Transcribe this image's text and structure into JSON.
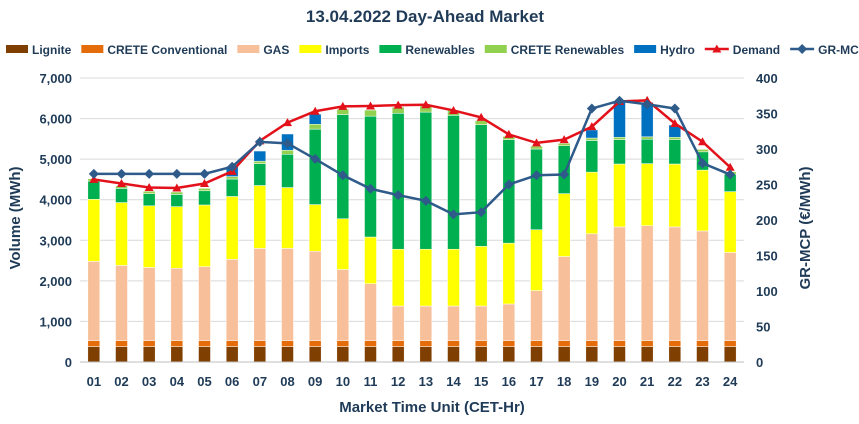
{
  "chart_data": {
    "type": "stacked-bar-with-lines",
    "title": "13.04.2022  Day-Ahead Market",
    "xlabel": "Market Time Unit (CET-Hr)",
    "ylabel": "Volume (MWh)",
    "y2label": "GR-MCP (€/MWh)",
    "ylim": [
      0,
      7000
    ],
    "y2lim": [
      0,
      400
    ],
    "yticks": [
      "0",
      "1,000",
      "2,000",
      "3,000",
      "4,000",
      "5,000",
      "6,000",
      "7,000"
    ],
    "y2ticks": [
      "0",
      "50",
      "100",
      "150",
      "200",
      "250",
      "300",
      "350",
      "400"
    ],
    "legend_position": "top",
    "grid": true,
    "categories": [
      "01",
      "02",
      "03",
      "04",
      "05",
      "06",
      "07",
      "08",
      "09",
      "10",
      "11",
      "12",
      "13",
      "14",
      "15",
      "16",
      "17",
      "18",
      "19",
      "20",
      "21",
      "22",
      "23",
      "24"
    ],
    "series": [
      {
        "name": "Lignite",
        "kind": "bar",
        "color": "#7f3f00",
        "values": [
          380,
          380,
          380,
          380,
          380,
          380,
          380,
          380,
          380,
          380,
          380,
          380,
          380,
          380,
          380,
          380,
          380,
          380,
          380,
          380,
          380,
          380,
          380,
          380
        ]
      },
      {
        "name": "CRETE Conventional",
        "kind": "bar",
        "color": "#e46c0a",
        "values": [
          150,
          150,
          150,
          150,
          150,
          150,
          150,
          150,
          150,
          150,
          150,
          150,
          150,
          150,
          150,
          150,
          150,
          150,
          150,
          150,
          150,
          150,
          150,
          150
        ]
      },
      {
        "name": "GAS",
        "kind": "bar",
        "color": "#f8c09a",
        "values": [
          1950,
          1850,
          1800,
          1780,
          1820,
          2000,
          2270,
          2270,
          2200,
          1750,
          1400,
          850,
          850,
          850,
          850,
          900,
          1230,
          2070,
          2630,
          2800,
          2830,
          2800,
          2700,
          2170
        ]
      },
      {
        "name": "Imports",
        "kind": "bar",
        "color": "#ffff00",
        "values": [
          1530,
          1550,
          1520,
          1520,
          1520,
          1550,
          1550,
          1500,
          1150,
          1250,
          1150,
          1400,
          1400,
          1400,
          1470,
          1500,
          1500,
          1550,
          1520,
          1550,
          1530,
          1550,
          1500,
          1500
        ]
      },
      {
        "name": "Renewables",
        "kind": "bar",
        "color": "#00b050",
        "values": [
          450,
          350,
          300,
          300,
          350,
          430,
          540,
          820,
          1860,
          2570,
          2980,
          3350,
          3380,
          3300,
          3000,
          2550,
          1990,
          1180,
          780,
          600,
          600,
          600,
          450,
          430
        ]
      },
      {
        "name": "CRETE Renewables",
        "kind": "bar",
        "color": "#92d050",
        "values": [
          60,
          60,
          60,
          60,
          60,
          60,
          60,
          100,
          120,
          130,
          150,
          150,
          150,
          120,
          100,
          80,
          70,
          60,
          60,
          60,
          60,
          60,
          60,
          60
        ]
      },
      {
        "name": "Hydro",
        "kind": "bar",
        "color": "#0070c0",
        "values": [
          0,
          0,
          0,
          0,
          0,
          250,
          250,
          400,
          250,
          0,
          0,
          0,
          0,
          0,
          0,
          0,
          0,
          0,
          200,
          900,
          850,
          300,
          0,
          0
        ]
      }
    ],
    "lines": [
      {
        "name": "Demand",
        "axis": "left",
        "color": "#e3111a",
        "marker": "triangle",
        "values": [
          4500,
          4400,
          4300,
          4290,
          4400,
          4700,
          5450,
          5900,
          6180,
          6300,
          6310,
          6330,
          6340,
          6200,
          6030,
          5610,
          5400,
          5480,
          5800,
          6420,
          6450,
          5880,
          5430,
          4800
        ]
      },
      {
        "name": "GR-MCP",
        "axis": "right",
        "color": "#2e5b8a",
        "marker": "diamond",
        "values": [
          265,
          265,
          265,
          265,
          265,
          275,
          310,
          308,
          286,
          263,
          244,
          235,
          227,
          208,
          211,
          250,
          263,
          264,
          357,
          368,
          363,
          357,
          280,
          264
        ]
      }
    ]
  }
}
